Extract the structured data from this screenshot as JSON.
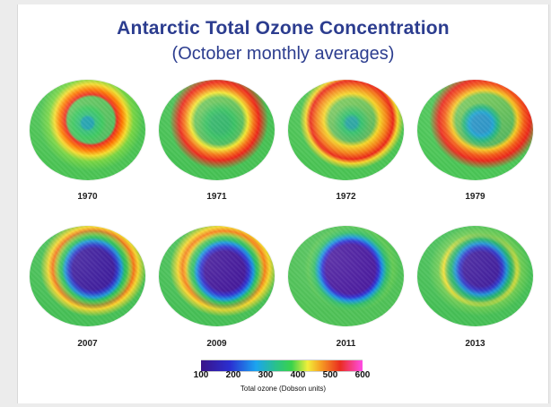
{
  "title": "Antarctic Total Ozone Concentration",
  "subtitle": "(October monthly averages)",
  "maps": [
    {
      "year": "1970",
      "icon": "ozone-map-icon"
    },
    {
      "year": "1971",
      "icon": "ozone-map-icon"
    },
    {
      "year": "1972",
      "icon": "ozone-map-icon"
    },
    {
      "year": "1979",
      "icon": "ozone-map-icon"
    },
    {
      "year": "2007",
      "icon": "ozone-map-icon"
    },
    {
      "year": "2009",
      "icon": "ozone-map-icon"
    },
    {
      "year": "2011",
      "icon": "ozone-map-icon"
    },
    {
      "year": "2013",
      "icon": "ozone-map-icon"
    }
  ],
  "colorbar": {
    "ticks": [
      "100",
      "200",
      "300",
      "400",
      "500",
      "600"
    ],
    "label": "Total ozone (Dobson units)",
    "colors": [
      "#3a1388",
      "#2a2fd1",
      "#1ba4f0",
      "#29c08d",
      "#39d24c",
      "#f2ef3a",
      "#f6a023",
      "#ea2d1f",
      "#ff4de6"
    ]
  }
}
